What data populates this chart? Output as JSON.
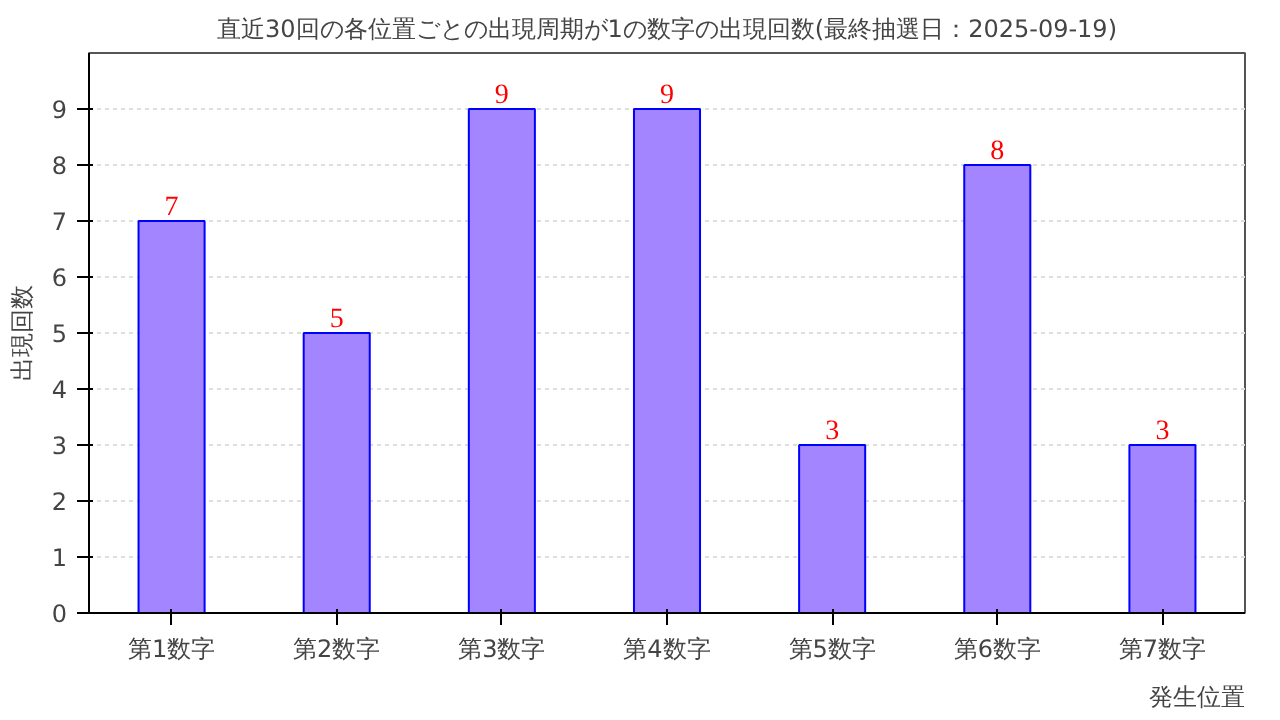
{
  "chart_data": {
    "type": "bar",
    "title": "直近30回の各位置ごとの出現周期が1の数字の出現回数(最終抽選日：2025-09-19)",
    "xlabel": "発生位置",
    "ylabel": "出現回数",
    "categories": [
      "第1数字",
      "第2数字",
      "第3数字",
      "第4数字",
      "第5数字",
      "第6数字",
      "第7数字"
    ],
    "values": [
      7,
      5,
      9,
      9,
      3,
      8,
      3
    ],
    "color": "#a385ff",
    "ylim": [
      0,
      10
    ],
    "yticks": [
      0,
      1,
      2,
      3,
      4,
      5,
      6,
      7,
      8,
      9
    ],
    "grid": "y",
    "data_labels": true
  }
}
